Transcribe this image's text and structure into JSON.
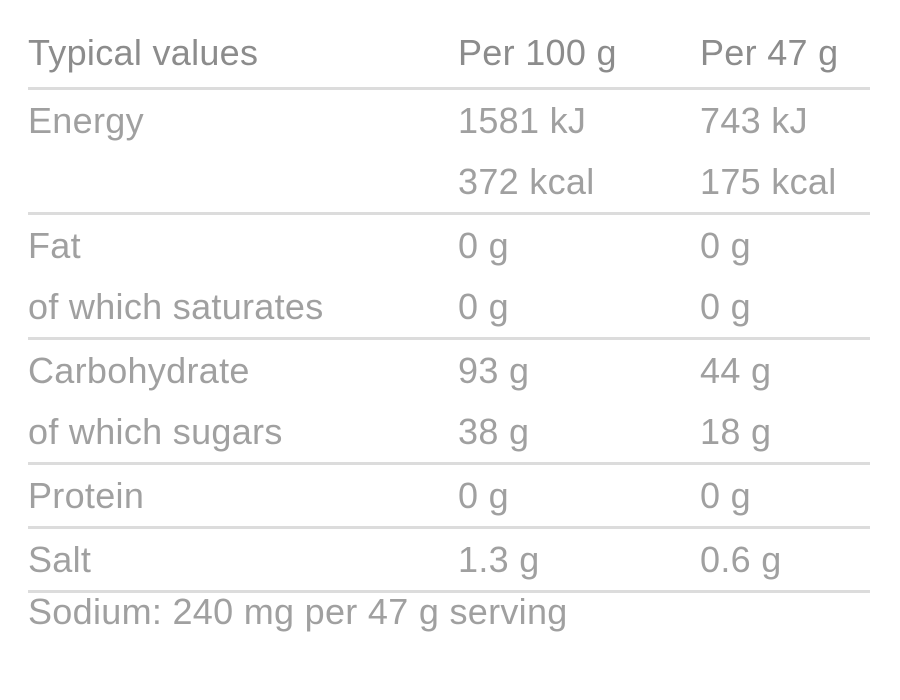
{
  "header": {
    "label": "Typical values",
    "col1": "Per 100 g",
    "col2": "Per 47 g"
  },
  "groups": [
    {
      "lines": [
        {
          "label": "Energy",
          "per100": "1581 kJ",
          "perServing": "743 kJ"
        },
        {
          "label": "",
          "per100": "372 kcal",
          "perServing": "175 kcal"
        }
      ]
    },
    {
      "lines": [
        {
          "label": "Fat",
          "per100": "0 g",
          "perServing": "0 g"
        },
        {
          "label": "of which saturates",
          "per100": "0 g",
          "perServing": "0 g"
        }
      ]
    },
    {
      "lines": [
        {
          "label": "Carbohydrate",
          "per100": "93 g",
          "perServing": "44 g"
        },
        {
          "label": "of which sugars",
          "per100": "38 g",
          "perServing": "18 g"
        }
      ]
    },
    {
      "lines": [
        {
          "label": "Protein",
          "per100": "0 g",
          "perServing": "0 g"
        }
      ]
    },
    {
      "lines": [
        {
          "label": "Salt",
          "per100": "1.3 g",
          "perServing": "0.6 g"
        }
      ]
    }
  ],
  "footer": "Sodium: 240 mg per 47 g serving",
  "colors": {
    "text": "#a0a0a0",
    "header": "#8c8c8c",
    "rule": "#dcdcdc"
  }
}
